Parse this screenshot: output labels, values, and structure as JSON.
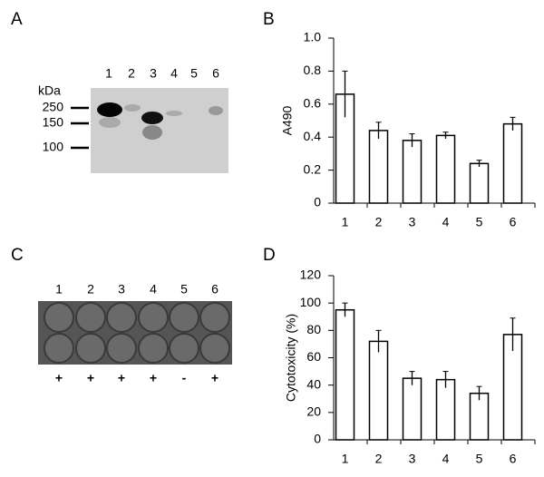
{
  "chart_data": [
    {
      "type": "bar",
      "panel": "B",
      "ylabel": "A490",
      "categories": [
        "1",
        "2",
        "3",
        "4",
        "5",
        "6"
      ],
      "values": [
        0.66,
        0.44,
        0.38,
        0.41,
        0.24,
        0.48
      ],
      "errors": [
        0.14,
        0.05,
        0.04,
        0.02,
        0.02,
        0.04
      ],
      "color": "#ffffff",
      "ylim": [
        0,
        1
      ],
      "yticks": [
        0,
        0.2,
        0.4,
        0.6,
        0.8,
        {
          "value": 1,
          "label": "1.0"
        }
      ],
      "grid": false
    },
    {
      "type": "bar",
      "panel": "D",
      "ylabel": "Cytotoxicity (%)",
      "categories": [
        "1",
        "2",
        "3",
        "4",
        "5",
        "6"
      ],
      "values": [
        95,
        72,
        45,
        44,
        34,
        77
      ],
      "errors": [
        5,
        8,
        5,
        6,
        5,
        12
      ],
      "color": "#ffffff",
      "ylim": [
        0,
        120
      ],
      "yticks": [
        0,
        20,
        40,
        60,
        80,
        100,
        120
      ],
      "grid": false
    }
  ],
  "blot": {
    "panel": "A",
    "unit": "kDa",
    "markers": [
      "250",
      "150",
      "100"
    ],
    "lanes": [
      "1",
      "2",
      "3",
      "4",
      "5",
      "6"
    ]
  },
  "wells": {
    "panel": "C",
    "lanes": [
      "1",
      "2",
      "3",
      "4",
      "5",
      "6"
    ],
    "signs": [
      "+",
      "+",
      "+",
      "+",
      "-",
      "+"
    ]
  }
}
